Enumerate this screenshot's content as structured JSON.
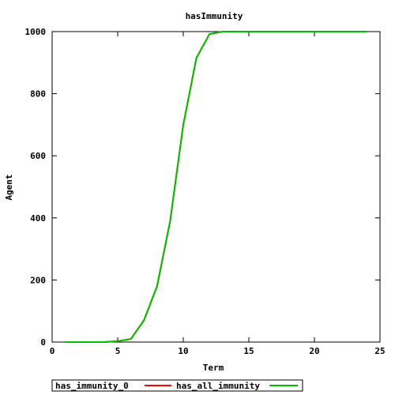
{
  "chart_data": {
    "type": "line",
    "title": "hasImmunity",
    "xlabel": "Term",
    "ylabel": "Agent",
    "xlim": [
      0,
      25
    ],
    "ylim": [
      0,
      1000
    ],
    "xticks": [
      0,
      5,
      10,
      15,
      20,
      25
    ],
    "yticks": [
      0,
      200,
      400,
      600,
      800,
      1000
    ],
    "grid": false,
    "legend_position": "bottom",
    "series": [
      {
        "name": "has_immunity_0",
        "color": "#ff0000",
        "x": [
          1,
          2,
          3,
          4,
          5,
          6,
          7,
          8,
          9,
          10,
          11,
          12,
          13,
          14,
          15,
          16,
          17,
          18,
          19,
          20,
          21,
          22,
          23,
          24
        ],
        "y": [
          0,
          0,
          0,
          0,
          3,
          10,
          70,
          180,
          390,
          700,
          915,
          992,
          1000,
          1000,
          1000,
          1000,
          1000,
          1000,
          1000,
          1000,
          1000,
          1000,
          1000,
          1000
        ]
      },
      {
        "name": "has_all_immunity",
        "color": "#00c000",
        "x": [
          1,
          2,
          3,
          4,
          5,
          6,
          7,
          8,
          9,
          10,
          11,
          12,
          13,
          14,
          15,
          16,
          17,
          18,
          19,
          20,
          21,
          22,
          23,
          24
        ],
        "y": [
          0,
          0,
          0,
          0,
          3,
          10,
          70,
          180,
          390,
          700,
          915,
          992,
          1000,
          1000,
          1000,
          1000,
          1000,
          1000,
          1000,
          1000,
          1000,
          1000,
          1000,
          1000
        ]
      }
    ]
  }
}
